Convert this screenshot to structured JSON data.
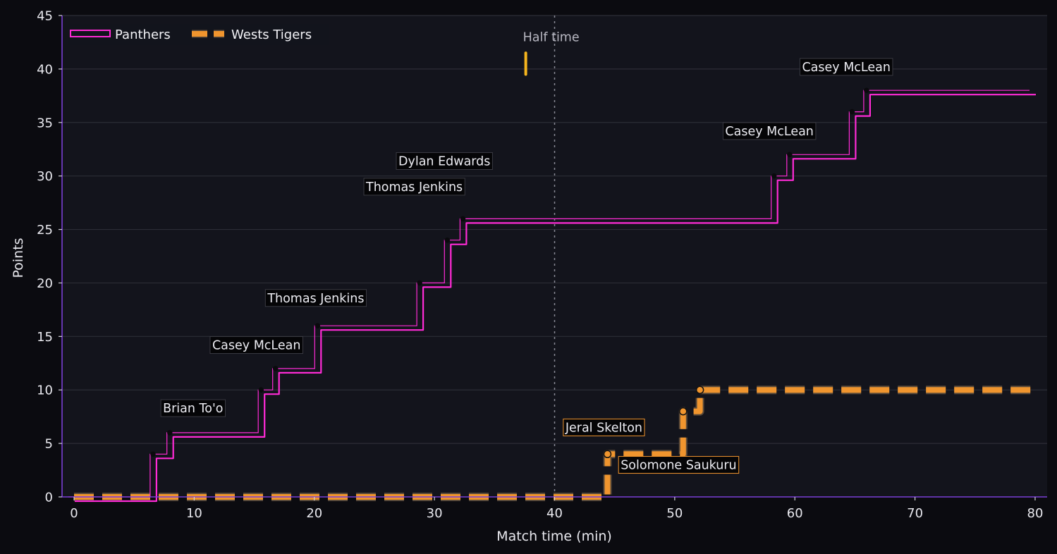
{
  "chart_data": {
    "type": "line",
    "step": true,
    "xlabel": "Match time (min)",
    "ylabel": "Points",
    "xlim": [
      -1,
      81
    ],
    "ylim": [
      0,
      45
    ],
    "xticks": [
      0,
      10,
      20,
      30,
      40,
      50,
      60,
      70,
      80
    ],
    "yticks": [
      0,
      5,
      10,
      15,
      20,
      25,
      30,
      35,
      40,
      45
    ],
    "grid": "horizontal",
    "legend_position": "top-left",
    "colors": {
      "background": "#0b0b10",
      "plot_background": "#13141c",
      "axis": "#7b3fd6",
      "grid": "#2c2d36",
      "panthers": "#ff2bd6",
      "wests_tigers": "#f0952e",
      "half_marker": "#f5b51e"
    },
    "series": [
      {
        "name": "Panthers",
        "style": "solid-outline",
        "x": [
          0,
          6.8,
          8.2,
          15.8,
          17.0,
          20.5,
          29.0,
          31.3,
          32.6,
          58.5,
          59.8,
          65.0,
          66.2,
          80
        ],
        "y": [
          0,
          4,
          6,
          10,
          12,
          16,
          20,
          24,
          26,
          30,
          32,
          36,
          38,
          38
        ],
        "scoring_points": [
          {
            "x": 6.8,
            "y": 4
          },
          {
            "x": 8.2,
            "y": 6
          },
          {
            "x": 15.8,
            "y": 10
          },
          {
            "x": 17.0,
            "y": 12
          },
          {
            "x": 20.5,
            "y": 16
          },
          {
            "x": 29.0,
            "y": 20
          },
          {
            "x": 31.3,
            "y": 24
          },
          {
            "x": 32.6,
            "y": 26
          },
          {
            "x": 58.5,
            "y": 30
          },
          {
            "x": 59.8,
            "y": 32
          },
          {
            "x": 65.0,
            "y": 36
          },
          {
            "x": 66.2,
            "y": 38
          }
        ]
      },
      {
        "name": "Wests Tigers",
        "style": "dashed",
        "x": [
          0,
          44.4,
          50.7,
          52.1,
          80
        ],
        "y": [
          0,
          4,
          8,
          10,
          10
        ],
        "scoring_points": [
          {
            "x": 44.4,
            "y": 4
          },
          {
            "x": 50.7,
            "y": 8
          },
          {
            "x": 52.1,
            "y": 10
          }
        ]
      }
    ],
    "annotations": [
      {
        "text": "Brian To'o",
        "series": "Panthers",
        "x": 7.4,
        "y": 7.9
      },
      {
        "text": "Casey McLean",
        "series": "Panthers",
        "x": 11.5,
        "y": 13.8
      },
      {
        "text": "Thomas Jenkins",
        "series": "Panthers",
        "x": 16.1,
        "y": 18.2
      },
      {
        "text": "Thomas Jenkins",
        "series": "Panthers",
        "x": 24.3,
        "y": 28.6
      },
      {
        "text": "Dylan Edwards",
        "series": "Panthers",
        "x": 27.0,
        "y": 31.0
      },
      {
        "text": "Casey McLean",
        "series": "Panthers",
        "x": 54.2,
        "y": 33.8
      },
      {
        "text": "Casey McLean",
        "series": "Panthers",
        "x": 60.6,
        "y": 39.8
      },
      {
        "text": "Jeral Skelton",
        "series": "Wests Tigers",
        "x": 40.9,
        "y": 6.1
      },
      {
        "text": "Solomone Saukuru",
        "series": "Wests Tigers",
        "x": 45.5,
        "y": 2.6
      }
    ],
    "half_time": {
      "x": 40,
      "label": "Half time",
      "marker_x": 37.6,
      "marker_y": [
        39.5,
        41.5
      ]
    }
  }
}
